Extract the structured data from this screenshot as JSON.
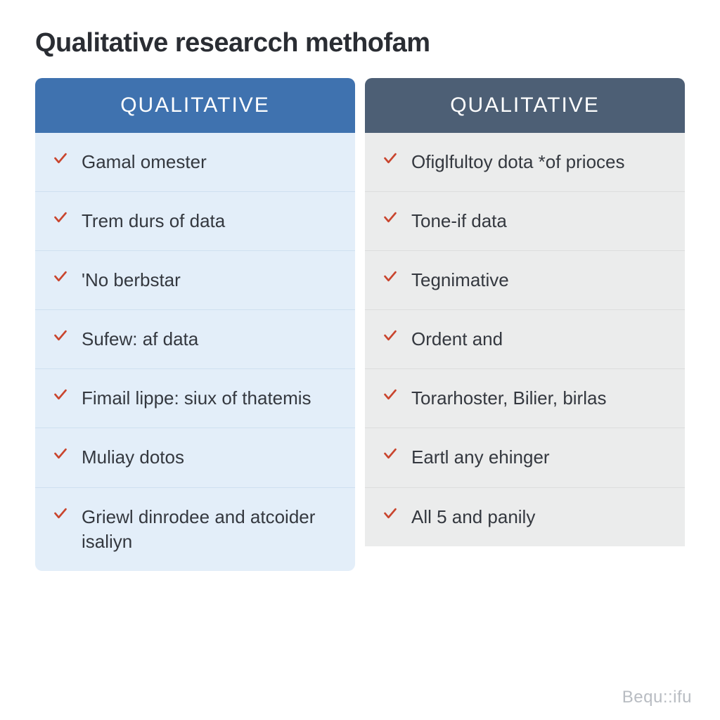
{
  "title": "Qualitative researcch methofam",
  "check_color": "#c9452e",
  "text_color": "#34383f",
  "title_color": "#2a2d33",
  "left": {
    "header": "QUALITATIVE",
    "header_bg": "#3f72af",
    "body_bg": "#e3eef9",
    "row_border": "#cfe0f0",
    "items": [
      "Gamal omester",
      "Trem durs of data",
      "'No berbstar",
      "Sufew: af data",
      "Fimail lippe: siux of thatemis",
      "Muliay dotos",
      "Griewl dinrodee and atcoider isaliyn"
    ]
  },
  "right": {
    "header": "QUALITATIVE",
    "header_bg": "#4d5f75",
    "body_bg": "#ebecec",
    "row_border": "#dcdddd",
    "items": [
      "Ofiglfultoy dota *of prioces",
      "Tone-if data",
      "Tegnimative",
      "Ordent and",
      "Torarhoster, Bilier, birlas",
      "Eartl any ehinger",
      "All 5 and panily"
    ]
  },
  "watermark": "Bequ::ifu"
}
